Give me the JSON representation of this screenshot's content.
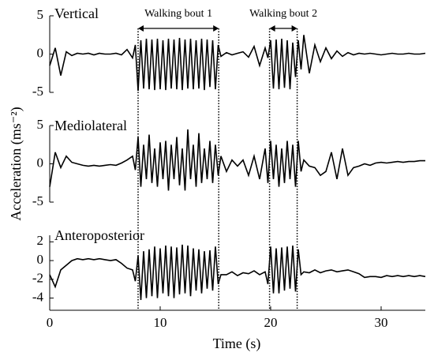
{
  "chart_data": [
    {
      "type": "line",
      "title": "Vertical",
      "color": "#000000",
      "annotations": [
        {
          "text": "Walking bout 1",
          "start": 8,
          "end": 15.3
        },
        {
          "text": "Walking bout 2",
          "start": 19.9,
          "end": 22.4
        }
      ],
      "xlim": [
        0,
        34
      ],
      "ylim": [
        -5,
        5
      ],
      "yticks": [
        -5,
        0,
        5
      ],
      "x": [
        0,
        0.5,
        1,
        1.5,
        2,
        2.5,
        3,
        3.5,
        4,
        4.5,
        5,
        5.5,
        6,
        6.5,
        7,
        7.5,
        7.75,
        8,
        8.25,
        8.5,
        8.75,
        9,
        9.25,
        9.5,
        9.75,
        10,
        10.25,
        10.5,
        10.75,
        11,
        11.25,
        11.5,
        11.75,
        12,
        12.25,
        12.5,
        12.75,
        13,
        13.25,
        13.5,
        13.75,
        14,
        14.25,
        14.5,
        14.75,
        15,
        15.25,
        15.5,
        16,
        16.5,
        17,
        17.5,
        18,
        18.5,
        19,
        19.5,
        19.75,
        20,
        20.25,
        20.5,
        20.75,
        21,
        21.25,
        21.5,
        21.75,
        22,
        22.25,
        22.5,
        22.75,
        23,
        23.5,
        24,
        24.5,
        25,
        25.5,
        26,
        26.5,
        27,
        27.5,
        28,
        28.5,
        29,
        29.5,
        30,
        30.5,
        31,
        31.5,
        32,
        32.5,
        33,
        33.5,
        34
      ],
      "values": [
        -1.5,
        0.8,
        -2.8,
        0.3,
        -0.2,
        0.1,
        0,
        0.1,
        -0.1,
        0.1,
        0,
        0,
        0.1,
        -0.1,
        0.6,
        -0.5,
        1.2,
        -4.8,
        1.8,
        -4.5,
        2,
        -4.6,
        1.9,
        -4.7,
        2,
        -4.6,
        1.8,
        -4.7,
        2,
        -4.5,
        1.9,
        -4.6,
        2.1,
        -4.7,
        1.9,
        -4.5,
        2,
        -4.6,
        1.8,
        -4.5,
        2,
        -4.7,
        1.9,
        -4.3,
        1.8,
        -4.6,
        1.2,
        -0.3,
        0.2,
        -0.1,
        0.1,
        0.3,
        -0.4,
        1,
        -1.5,
        0.8,
        -0.5,
        1.8,
        -4.5,
        1.9,
        -4.6,
        2,
        -4.4,
        1.8,
        -4.6,
        1.5,
        -3,
        1.8,
        -2,
        2.5,
        -2.5,
        1.2,
        -1,
        0.8,
        -0.6,
        0.4,
        -0.3,
        0.2,
        -0.1,
        0.1,
        0,
        0.1,
        0,
        -0.1,
        0,
        0.1,
        0,
        0,
        0.1,
        0,
        0,
        0.1
      ]
    },
    {
      "type": "line",
      "title": "Mediolateral",
      "color": "#000000",
      "ylabel": "Acceleration (ms⁻²)",
      "xlim": [
        0,
        34
      ],
      "ylim": [
        -5,
        5
      ],
      "yticks": [
        -5,
        0,
        5
      ],
      "x": [
        0,
        0.5,
        1,
        1.5,
        2,
        2.5,
        3,
        3.5,
        4,
        4.5,
        5,
        5.5,
        6,
        6.5,
        7,
        7.5,
        7.75,
        8,
        8.25,
        8.5,
        8.75,
        9,
        9.25,
        9.5,
        9.75,
        10,
        10.25,
        10.5,
        10.75,
        11,
        11.25,
        11.5,
        11.75,
        12,
        12.25,
        12.5,
        12.75,
        13,
        13.25,
        13.5,
        13.75,
        14,
        14.25,
        14.5,
        14.75,
        15,
        15.25,
        15.5,
        16,
        16.5,
        17,
        17.5,
        18,
        18.5,
        19,
        19.5,
        19.75,
        20,
        20.25,
        20.5,
        20.75,
        21,
        21.25,
        21.5,
        21.75,
        22,
        22.25,
        22.5,
        22.75,
        23,
        23.5,
        24,
        24.5,
        25,
        25.5,
        26,
        26.5,
        27,
        27.5,
        28,
        28.5,
        29,
        29.5,
        30,
        30.5,
        31,
        31.5,
        32,
        32.5,
        33,
        33.5,
        34
      ],
      "values": [
        -3,
        1.5,
        -0.5,
        1,
        0.2,
        0,
        -0.2,
        -0.3,
        -0.2,
        -0.3,
        -0.2,
        -0.1,
        -0.2,
        0.1,
        0.5,
        1,
        -0.8,
        3.5,
        -3,
        2.5,
        -2,
        3.8,
        -2.5,
        2,
        -3,
        2.8,
        -2,
        3,
        -3.5,
        2.5,
        -2,
        3.5,
        -2.8,
        2,
        -3.5,
        4.5,
        -2,
        2.5,
        -3,
        4,
        -2.5,
        2,
        -2,
        3,
        -2.5,
        2.5,
        -1.5,
        1,
        -1,
        0.5,
        -0.3,
        0.5,
        -1.5,
        1,
        -2,
        2,
        -2.5,
        3,
        -2,
        2.5,
        -3,
        2,
        -2.5,
        3,
        -2,
        2.5,
        -3,
        3,
        -1,
        0.5,
        -0.3,
        -0.5,
        -1.5,
        -1,
        1.5,
        -2,
        2,
        -1.5,
        -0.5,
        -0.3,
        0,
        -0.2,
        0.1,
        0.2,
        0.1,
        0.2,
        0.3,
        0.2,
        0.3,
        0.3,
        0.4,
        0.4
      ]
    },
    {
      "type": "line",
      "title": "Anteroposterior",
      "color": "#000000",
      "xlabel": "Time (s)",
      "xlim": [
        0,
        34
      ],
      "xticks": [
        0,
        10,
        20,
        30
      ],
      "ylim": [
        -5.3,
        2.7
      ],
      "yticks": [
        -4,
        -2,
        0,
        2
      ],
      "x": [
        0,
        0.5,
        1,
        1.5,
        2,
        2.5,
        3,
        3.5,
        4,
        4.5,
        5,
        5.5,
        6,
        6.5,
        7,
        7.5,
        7.75,
        8,
        8.25,
        8.5,
        8.75,
        9,
        9.25,
        9.5,
        9.75,
        10,
        10.25,
        10.5,
        10.75,
        11,
        11.25,
        11.5,
        11.75,
        12,
        12.25,
        12.5,
        12.75,
        13,
        13.25,
        13.5,
        13.75,
        14,
        14.25,
        14.5,
        14.75,
        15,
        15.25,
        15.5,
        16,
        16.5,
        17,
        17.5,
        18,
        18.5,
        19,
        19.5,
        19.75,
        20,
        20.25,
        20.5,
        20.75,
        21,
        21.25,
        21.5,
        21.75,
        22,
        22.25,
        22.5,
        22.75,
        23,
        23.5,
        24,
        24.5,
        25,
        25.5,
        26,
        26.5,
        27,
        27.5,
        28,
        28.5,
        29,
        29.5,
        30,
        30.5,
        31,
        31.5,
        32,
        32.5,
        33,
        33.5,
        34
      ],
      "values": [
        -1.5,
        -2.8,
        -1,
        -0.5,
        0,
        0.2,
        0.1,
        0.2,
        0.1,
        0.2,
        0.1,
        0,
        0.1,
        -0.3,
        -0.8,
        -1,
        -2.2,
        0.5,
        -4.2,
        1,
        -4,
        1.2,
        -3.8,
        1.5,
        -4,
        1.3,
        -3.5,
        1.6,
        -3.8,
        1.5,
        -4,
        1.4,
        -3.6,
        1.7,
        -3.5,
        1.6,
        -3.8,
        1.3,
        -3.2,
        1.2,
        -3.5,
        1,
        -3,
        1.1,
        -3.2,
        1.5,
        -2.5,
        -1.5,
        -1.5,
        -1.2,
        -1.6,
        -1.3,
        -1.4,
        -1.1,
        -1.5,
        -1.2,
        -2.5,
        1.5,
        -3.5,
        1.3,
        -3.5,
        1.4,
        -3.2,
        1.5,
        -3,
        1.6,
        -3.3,
        1.2,
        -1.5,
        -1.2,
        -1.3,
        -1,
        -1.3,
        -1.1,
        -1,
        -1.2,
        -1.1,
        -1,
        -1.2,
        -1.4,
        -1.8,
        -1.7,
        -1.7,
        -1.8,
        -1.6,
        -1.7,
        -1.6,
        -1.7,
        -1.6,
        -1.7,
        -1.6,
        -1.7
      ]
    }
  ]
}
